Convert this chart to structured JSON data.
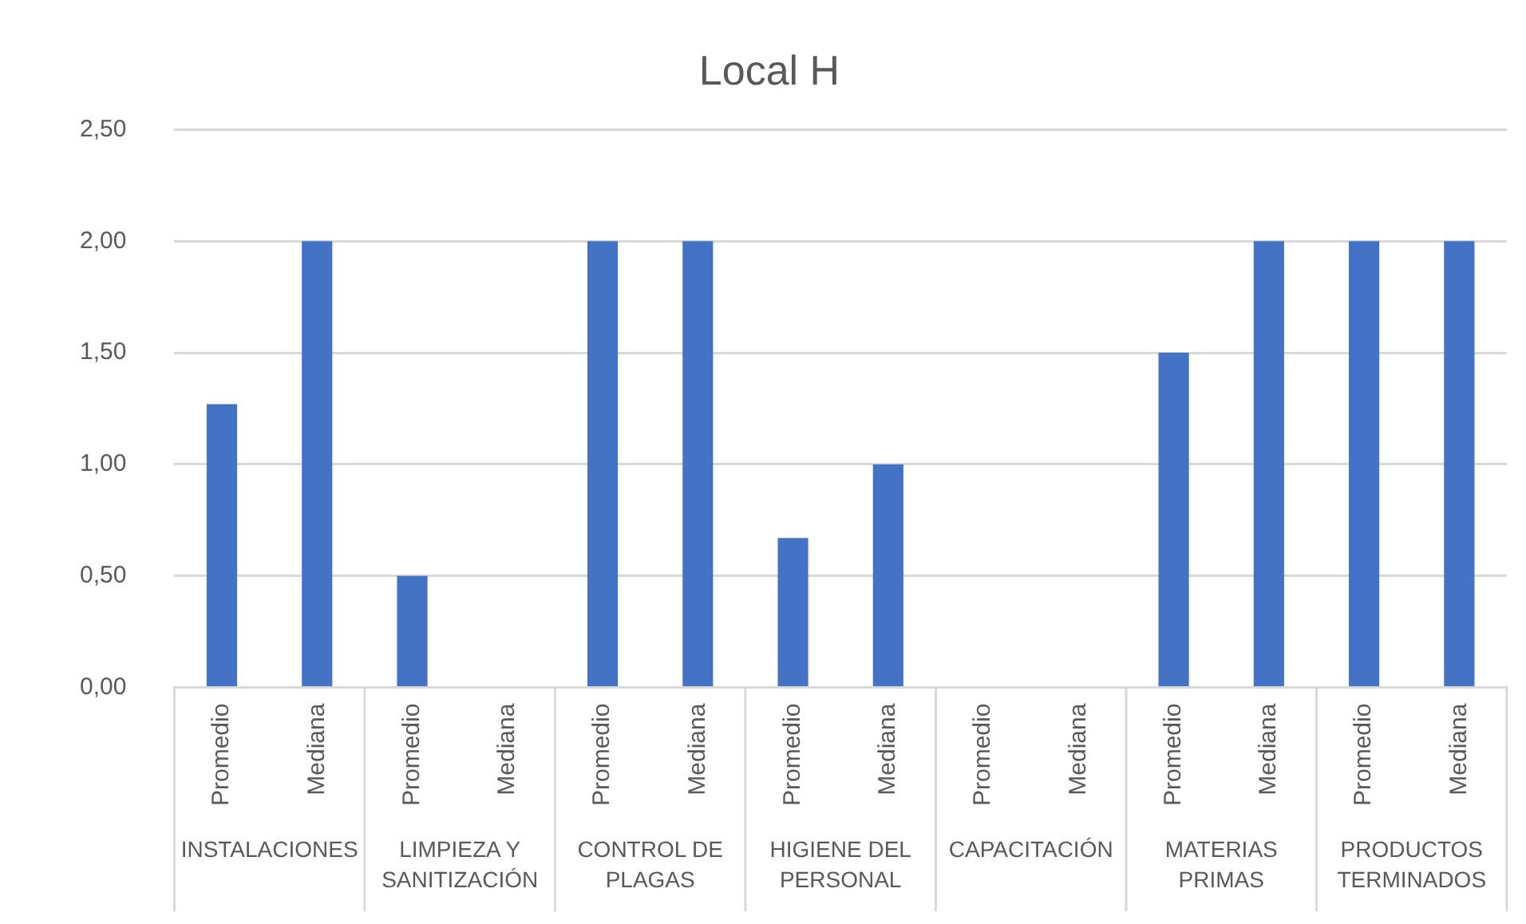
{
  "chart_data": {
    "type": "bar",
    "title": "Local H",
    "categories": [
      "Promedio",
      "Mediana",
      "Promedio",
      "Mediana",
      "Promedio",
      "Mediana",
      "Promedio",
      "Mediana",
      "Promedio",
      "Mediana",
      "Promedio",
      "Mediana",
      "Promedio",
      "Mediana"
    ],
    "values": [
      1.27,
      2,
      0.5,
      0,
      2,
      2,
      0.67,
      1,
      0,
      0,
      1.5,
      2,
      2,
      2
    ],
    "color": "#4472c4",
    "ylim": [
      0,
      2.5
    ],
    "yticks": [
      {
        "value": 0,
        "label": "0,00"
      },
      {
        "value": 0.5,
        "label": "0,50"
      },
      {
        "value": 1,
        "label": "1,00"
      },
      {
        "value": 1.5,
        "label": "1,50"
      },
      {
        "value": 2,
        "label": "2,00"
      },
      {
        "value": 2.5,
        "label": "2,50"
      }
    ],
    "grid": "y",
    "annotations": [
      "INSTALACIONES",
      "LIMPIEZA Y SANITIZACIÓN",
      "CONTROL DE PLAGAS",
      "HIGIENE DEL PERSONAL",
      "CAPACITACIÓN",
      "MATERIAS PRIMAS",
      "PRODUCTOS TERMINADOS"
    ]
  }
}
